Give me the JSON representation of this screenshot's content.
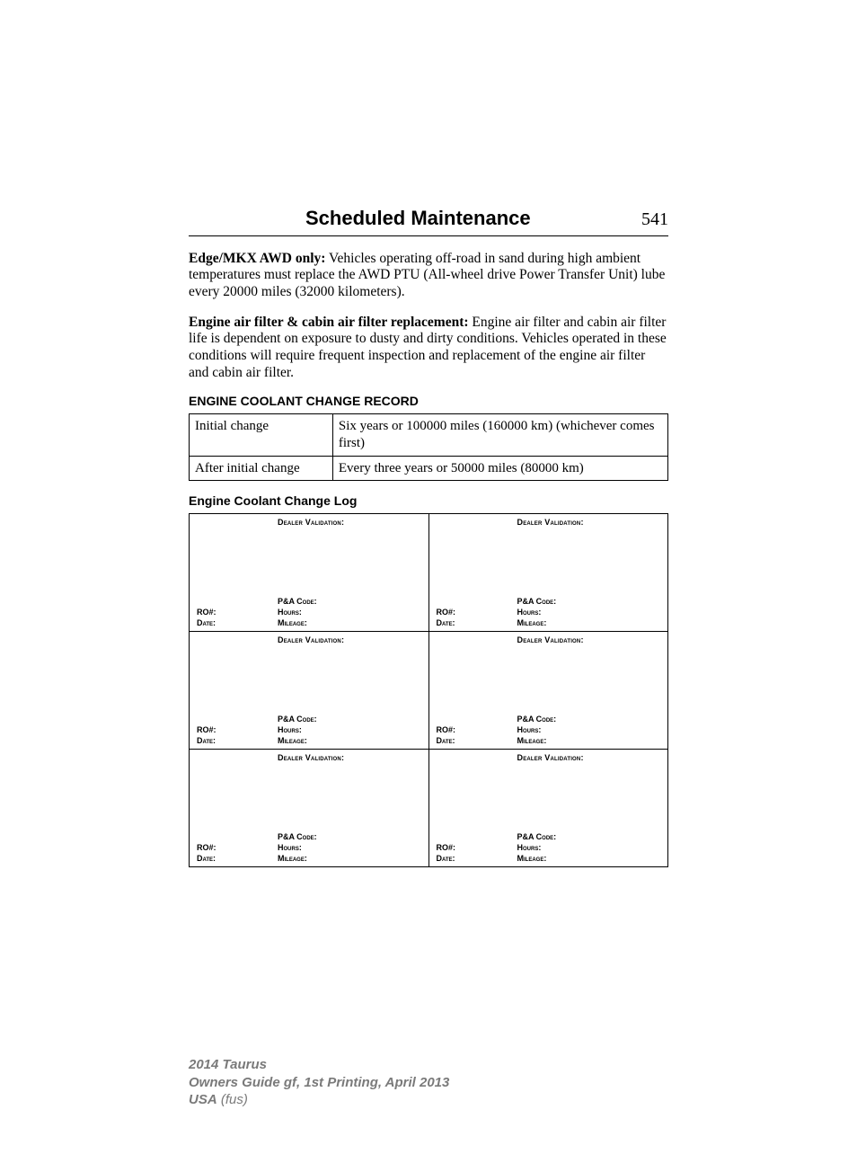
{
  "header": {
    "title": "Scheduled Maintenance",
    "page_number": "541"
  },
  "paragraphs": {
    "p1_bold": "Edge/MKX AWD only:",
    "p1_rest": " Vehicles operating off-road in sand during high ambient temperatures must replace the AWD PTU (All-wheel drive Power Transfer Unit) lube every 20000 miles (32000 kilometers).",
    "p2_bold": "Engine air filter & cabin air filter replacement:",
    "p2_rest": " Engine air filter and cabin air filter life is dependent on exposure to dusty and dirty conditions. Vehicles operated in these conditions will require frequent inspection and replacement of the engine air filter and cabin air filter."
  },
  "record": {
    "heading": "ENGINE COOLANT CHANGE RECORD",
    "rows": [
      {
        "label": "Initial change",
        "value": "Six years or 100000 miles (160000 km) (whichever comes first)"
      },
      {
        "label": "After initial change",
        "value": "Every three years or 50000 miles (80000 km)"
      }
    ]
  },
  "log": {
    "heading": "Engine Coolant Change Log",
    "labels": {
      "dealer_validation": "Dealer Validation:",
      "pa_code": "P&A Code:",
      "ro": "RO#:",
      "hours": "Hours:",
      "date": "Date:",
      "mileage": "Mileage:"
    },
    "rows": 3,
    "cols": 2
  },
  "footer": {
    "line1": "2014 Taurus",
    "line2": "Owners Guide gf, 1st Printing, April 2013",
    "line3a": "USA",
    "line3b": " (fus)"
  },
  "colors": {
    "text": "#000000",
    "footer_gray": "#7a7a7a",
    "background": "#ffffff",
    "border": "#000000"
  }
}
